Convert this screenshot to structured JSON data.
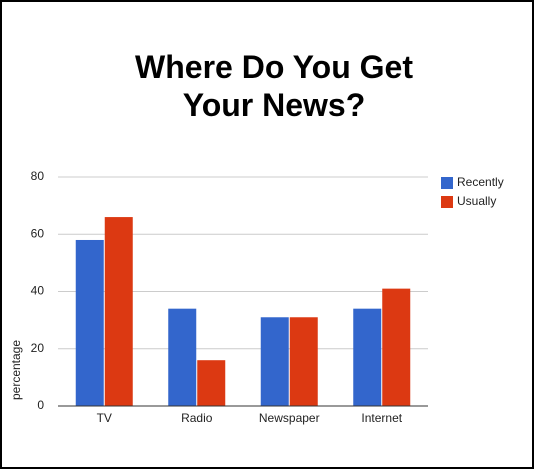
{
  "chart_data": {
    "type": "bar",
    "title": "Where Do You Get Your News?",
    "y_label": "percentage",
    "categories": [
      "TV",
      "Radio",
      "Newspaper",
      "Internet"
    ],
    "series": [
      {
        "name": "Recently",
        "color": "#3366cc",
        "values": [
          58,
          34,
          31,
          34
        ]
      },
      {
        "name": "Usually",
        "color": "#dc3912",
        "values": [
          66,
          16,
          31,
          41
        ]
      }
    ],
    "ylim": [
      0,
      80
    ],
    "yticks": [
      0,
      20,
      40,
      60,
      80
    ],
    "grid": true,
    "legend": "right"
  }
}
